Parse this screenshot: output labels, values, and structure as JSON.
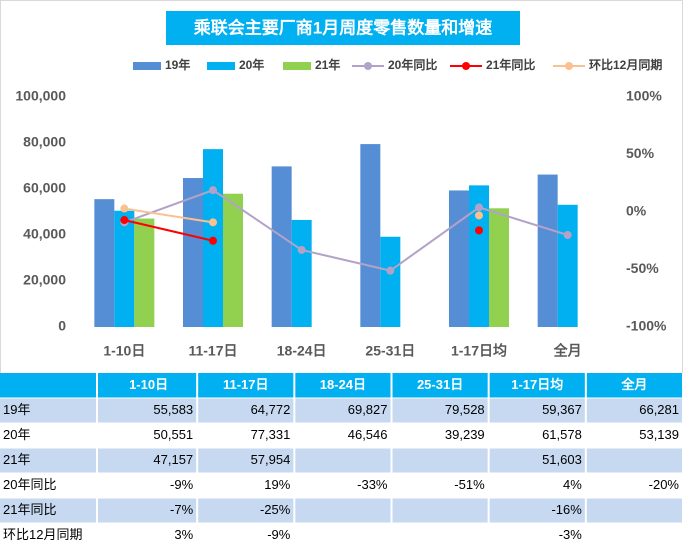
{
  "chart_data": {
    "type": "bar",
    "title": "乘联会主要厂商1月周度零售数量和增速",
    "categories": [
      "1-10日",
      "11-17日",
      "18-24日",
      "25-31日",
      "1-17日均",
      "全月"
    ],
    "series": [
      {
        "name": "19年",
        "type": "bar",
        "color": "#558ed5",
        "values": [
          55583,
          64772,
          69827,
          79528,
          59367,
          66281
        ],
        "value_labels": [
          "55,583",
          "64,772",
          "69,827",
          "79,528",
          "59,367",
          "66,281"
        ]
      },
      {
        "name": "20年",
        "type": "bar",
        "color": "#00b0f0",
        "values": [
          50551,
          77331,
          46546,
          39239,
          61578,
          53139
        ],
        "value_labels": [
          "50,551",
          "77,331",
          "46,546",
          "39,239",
          "61,578",
          "53,139"
        ]
      },
      {
        "name": "21年",
        "type": "bar",
        "color": "#92d050",
        "values": [
          47157,
          57954,
          null,
          null,
          51603,
          null
        ],
        "value_labels": [
          "47,157",
          "57,954",
          null,
          null,
          "51,603",
          null
        ]
      },
      {
        "name": "20年同比",
        "type": "line",
        "axis": "y2",
        "color": "#b3a2c7",
        "values": [
          -9,
          19,
          -33,
          -51,
          4,
          -20
        ],
        "value_labels": [
          "-9%",
          "19%",
          "-33%",
          "-51%",
          "4%",
          "-20%"
        ]
      },
      {
        "name": "21年同比",
        "type": "line",
        "axis": "y2",
        "color": "#ff0000",
        "values": [
          -7,
          -25,
          null,
          null,
          -16,
          null
        ],
        "value_labels": [
          "-7%",
          "-25%",
          null,
          null,
          "-16%",
          null
        ]
      },
      {
        "name": "环比12月同期",
        "type": "line",
        "axis": "y2",
        "color": "#fac090",
        "values": [
          3,
          -9,
          null,
          null,
          -3,
          null
        ],
        "value_labels": [
          "3%",
          "-9%",
          null,
          null,
          "-3%",
          null
        ]
      }
    ],
    "ylim": [
      0,
      100000
    ],
    "yticks": [
      0,
      {
        "value": 20000,
        "label": "20,000"
      },
      {
        "value": 40000,
        "label": "40,000"
      },
      {
        "value": 60000,
        "label": "60,000"
      },
      {
        "value": 80000,
        "label": "80,000"
      },
      {
        "value": 100000,
        "label": "100,000"
      }
    ],
    "y2lim": [
      -100,
      100
    ],
    "y2ticks": [
      {
        "value": -100,
        "label": "-100%"
      },
      {
        "value": -50,
        "label": "-50%"
      },
      {
        "value": 0,
        "label": "0%"
      },
      {
        "value": 50,
        "label": "50%"
      },
      {
        "value": 100,
        "label": "100%"
      }
    ]
  }
}
